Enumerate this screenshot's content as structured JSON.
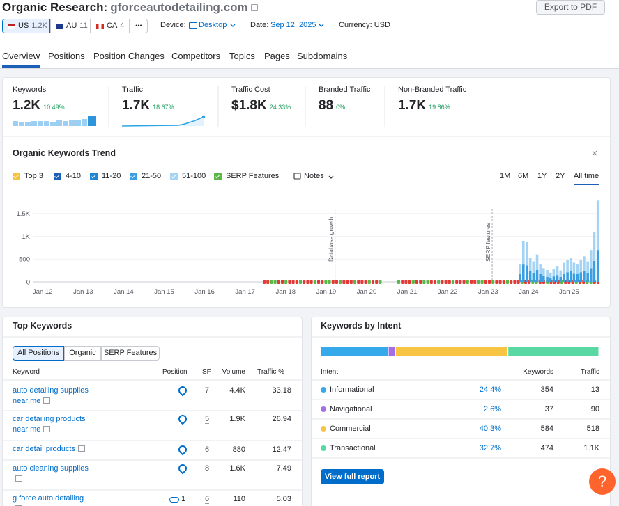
{
  "header": {
    "title": "Organic Research:",
    "domain": "gforceautodetailing.com",
    "export": "Export to PDF",
    "databases": [
      {
        "code": "US",
        "count": "1.2K"
      },
      {
        "code": "AU",
        "count": "11"
      },
      {
        "code": "CA",
        "count": "4"
      }
    ],
    "more": "•••",
    "device_label": "Device:",
    "device": "Desktop",
    "date_label": "Date:",
    "date": "Sep 12, 2025",
    "currency": "Currency: USD"
  },
  "tabs": [
    "Overview",
    "Positions",
    "Position Changes",
    "Competitors",
    "Topics",
    "Pages",
    "Subdomains"
  ],
  "metrics": [
    {
      "label": "Keywords",
      "value": "1.2K",
      "change": "10.49%"
    },
    {
      "label": "Traffic",
      "value": "1.7K",
      "change": "18.67%"
    },
    {
      "label": "Traffic Cost",
      "value": "$1.8K",
      "change": "24.33%"
    },
    {
      "label": "Branded Traffic",
      "value": "88",
      "change": "0%"
    },
    {
      "label": "Non-Branded Traffic",
      "value": "1.7K",
      "change": "19.86%"
    }
  ],
  "trend": {
    "title": "Organic Keywords Trend",
    "notes": "Notes",
    "ranges": [
      "1M",
      "6M",
      "1Y",
      "2Y",
      "All time"
    ],
    "active_range": 4
  },
  "chart_data": {
    "type": "bar",
    "stacked": true,
    "grid": true,
    "xlim": [
      2011.6,
      2025.75
    ],
    "ylim": [
      0,
      1800
    ],
    "yticks": [
      0,
      500,
      {
        "value": 1000,
        "label": "1K"
      },
      {
        "value": 1500,
        "label": "1.5K"
      }
    ],
    "xticks": [
      {
        "value": 2012,
        "label": "Jan 12"
      },
      {
        "value": 2013,
        "label": "Jan 13"
      },
      {
        "value": 2014,
        "label": "Jan 14"
      },
      {
        "value": 2015,
        "label": "Jan 15"
      },
      {
        "value": 2016,
        "label": "Jan 16"
      },
      {
        "value": 2017,
        "label": "Jan 17"
      },
      {
        "value": 2018,
        "label": "Jan 18"
      },
      {
        "value": 2019,
        "label": "Jan 19"
      },
      {
        "value": 2020,
        "label": "Jan 20"
      },
      {
        "value": 2021,
        "label": "Jan 21"
      },
      {
        "value": 2022,
        "label": "Jan 22"
      },
      {
        "value": 2023,
        "label": "Jan 23"
      },
      {
        "value": 2024,
        "label": "Jan 24"
      },
      {
        "value": 2025,
        "label": "Jan 25"
      }
    ],
    "x": [
      2023.79,
      2023.87,
      2023.96,
      2024.04,
      2024.12,
      2024.21,
      2024.29,
      2024.37,
      2024.46,
      2024.54,
      2024.62,
      2024.71,
      2024.79,
      2024.87,
      2024.96,
      2025.04,
      2025.12,
      2025.21,
      2025.29,
      2025.37,
      2025.46,
      2025.54,
      2025.62,
      2025.71
    ],
    "series": [
      {
        "name": "Top 3",
        "color": "#f5c342"
      },
      {
        "name": "4-10",
        "color": "#1c5fb8"
      },
      {
        "name": "11-20",
        "color": "#1f86d6"
      },
      {
        "name": "21-50",
        "color": "#3a9fe2",
        "values": [
          170,
          380,
          360,
          230,
          200,
          260,
          170,
          130,
          110,
          90,
          120,
          150,
          110,
          180,
          210,
          230,
          190,
          170,
          210,
          240,
          200,
          300,
          460,
          700
        ]
      },
      {
        "name": "51-100",
        "color": "#a5d3f3",
        "values": [
          210,
          520,
          520,
          290,
          250,
          340,
          210,
          170,
          150,
          110,
          160,
          200,
          140,
          240,
          270,
          290,
          230,
          210,
          270,
          320,
          250,
          400,
          640,
          1080
        ]
      },
      {
        "name": "SERP Features",
        "color": "#5bb848"
      }
    ],
    "annotations": [
      {
        "text": "Database growth",
        "x": 2019.22
      },
      {
        "text": "SERP features",
        "x": 2023.1
      }
    ]
  },
  "top_keywords": {
    "title": "Top Keywords",
    "filters": [
      "All Positions",
      "Organic",
      "SERP Features"
    ],
    "columns": [
      "Keyword",
      "Position",
      "SF",
      "Volume",
      "Traffic %"
    ],
    "rows": [
      {
        "keyword": "auto detailing supplies near me",
        "position": null,
        "sf": 7,
        "volume": "4.4K",
        "traffic": 33.18
      },
      {
        "keyword": "car detailing products near me",
        "position": null,
        "sf": 5,
        "volume": "1.9K",
        "traffic": 26.94
      },
      {
        "keyword": "car detail products",
        "position": null,
        "sf": 6,
        "volume": 880,
        "traffic": 12.47
      },
      {
        "keyword": "auto cleaning supplies",
        "position": null,
        "sf": 8,
        "volume": "1.6K",
        "traffic": 7.49
      },
      {
        "keyword": "g force auto detailing",
        "position": 1,
        "sf": 6,
        "volume": 110,
        "traffic": 5.03
      }
    ]
  },
  "intent": {
    "title": "Keywords by Intent",
    "columns": [
      "Intent",
      "Keywords",
      "Traffic"
    ],
    "rows": [
      {
        "name": "Informational",
        "color": "#35a9e9",
        "share": {
          "value": 24.4,
          "label": "24.4%"
        },
        "keywords": 354,
        "traffic": 13
      },
      {
        "name": "Navigational",
        "color": "#a56ee6",
        "share": {
          "value": 2.6,
          "label": "2.6%"
        },
        "keywords": 37,
        "traffic": 90
      },
      {
        "name": "Commercial",
        "color": "#f7c543",
        "share": {
          "value": 40.3,
          "label": "40.3%"
        },
        "keywords": 584,
        "traffic": 518
      },
      {
        "name": "Transactional",
        "color": "#5ad8a4",
        "share": {
          "value": 32.7,
          "label": "32.7%"
        },
        "keywords": 474,
        "traffic": "1.1K"
      }
    ],
    "button": "View full report"
  },
  "help": "?"
}
